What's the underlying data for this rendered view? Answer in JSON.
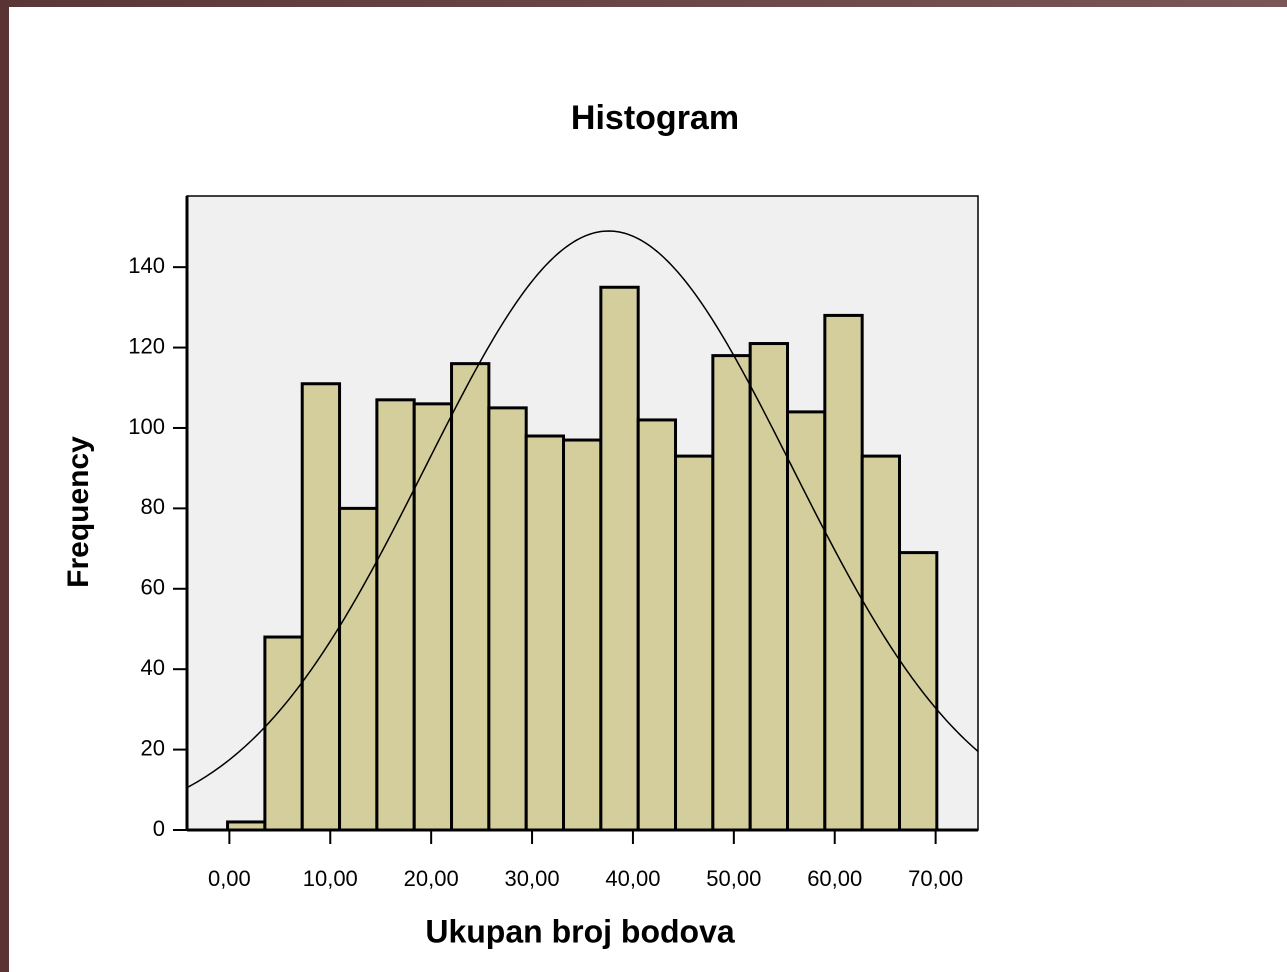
{
  "chart_data": {
    "type": "histogram",
    "title": "Histogram",
    "x_label": "Ukupan broj bodova",
    "y_label": "Frequency",
    "bins": [
      -0.18,
      3.52,
      7.22,
      10.92,
      14.62,
      18.32,
      22.02,
      25.72,
      29.42,
      33.12,
      36.82,
      40.52,
      44.22,
      47.92,
      51.62,
      55.32,
      59.02,
      62.72,
      66.42,
      70.12
    ],
    "counts": [
      2,
      48,
      111,
      80,
      107,
      106,
      116,
      105,
      98,
      97,
      135,
      102,
      93,
      118,
      121,
      104,
      128,
      93,
      69
    ],
    "color": "#d3ce9c",
    "normal_curve": {
      "mean": 37.6,
      "std": 18.16
    },
    "xlim": [
      -4.2,
      74.2
    ],
    "ylim": [
      0,
      157.7
    ],
    "xticks": [
      {
        "value": 0,
        "label": "0,00"
      },
      {
        "value": 10,
        "label": "10,00"
      },
      {
        "value": 20,
        "label": "20,00"
      },
      {
        "value": 30,
        "label": "30,00"
      },
      {
        "value": 40,
        "label": "40,00"
      },
      {
        "value": 50,
        "label": "50,00"
      },
      {
        "value": 60,
        "label": "60,00"
      },
      {
        "value": 70,
        "label": "70,00"
      }
    ],
    "yticks": [
      0,
      20,
      40,
      60,
      80,
      100,
      120,
      140
    ]
  }
}
